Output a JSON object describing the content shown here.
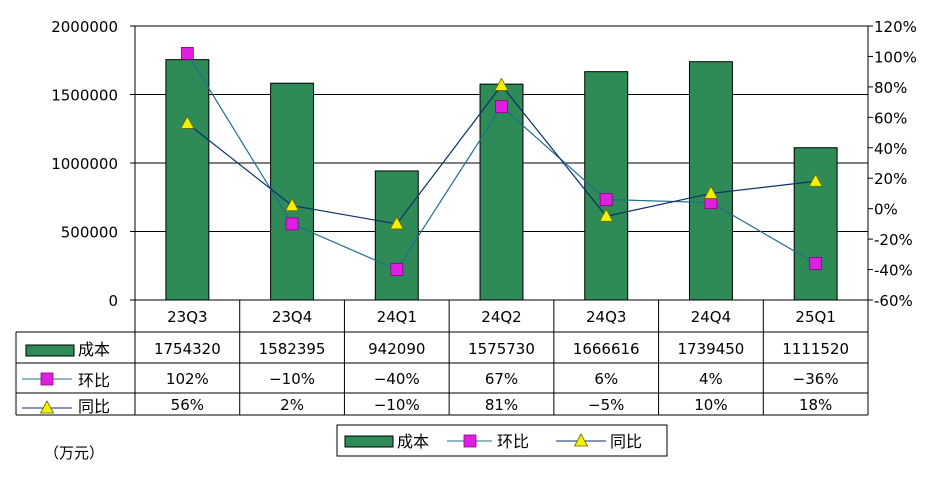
{
  "chart_data": {
    "type": "bar",
    "categories": [
      "23Q3",
      "23Q4",
      "24Q1",
      "24Q2",
      "24Q3",
      "24Q4",
      "25Q1"
    ],
    "unit": "（万元）",
    "ylim": [
      0,
      2000000
    ],
    "y_ticks": [
      "0",
      "500000",
      "1000000",
      "1500000",
      "2000000"
    ],
    "y2lim": [
      -60,
      120
    ],
    "y2_ticks": [
      "-60%",
      "-40%",
      "-20%",
      "0%",
      "20%",
      "40%",
      "60%",
      "80%",
      "100%",
      "120%"
    ],
    "grid": true,
    "legend_position": "bottom",
    "series": [
      {
        "name": "成本",
        "type": "bar",
        "axis": "left",
        "color": "#2e8b57",
        "values": [
          1754320,
          1582395,
          942090,
          1575730,
          1666616,
          1739450,
          1111520
        ],
        "labels": [
          "1754320",
          "1582395",
          "942090",
          "1575730",
          "1666616",
          "1739450",
          "1111520"
        ]
      },
      {
        "name": "环比",
        "type": "line",
        "axis": "right",
        "color": "#1f6f8b",
        "marker_color": "#e020e0",
        "values": [
          102,
          -10,
          -40,
          67,
          6,
          4,
          -36
        ],
        "labels": [
          "102%",
          "-10%",
          "-40%",
          "67%",
          "6%",
          "4%",
          "-36%"
        ]
      },
      {
        "name": "同比",
        "type": "line",
        "axis": "right",
        "color": "#0b2f6b",
        "marker_color": "#f2f200",
        "values": [
          56,
          2,
          -10,
          81,
          -5,
          10,
          18
        ],
        "labels": [
          "56%",
          "2%",
          "-10%",
          "81%",
          "-5%",
          "10%",
          "18%"
        ]
      }
    ]
  }
}
